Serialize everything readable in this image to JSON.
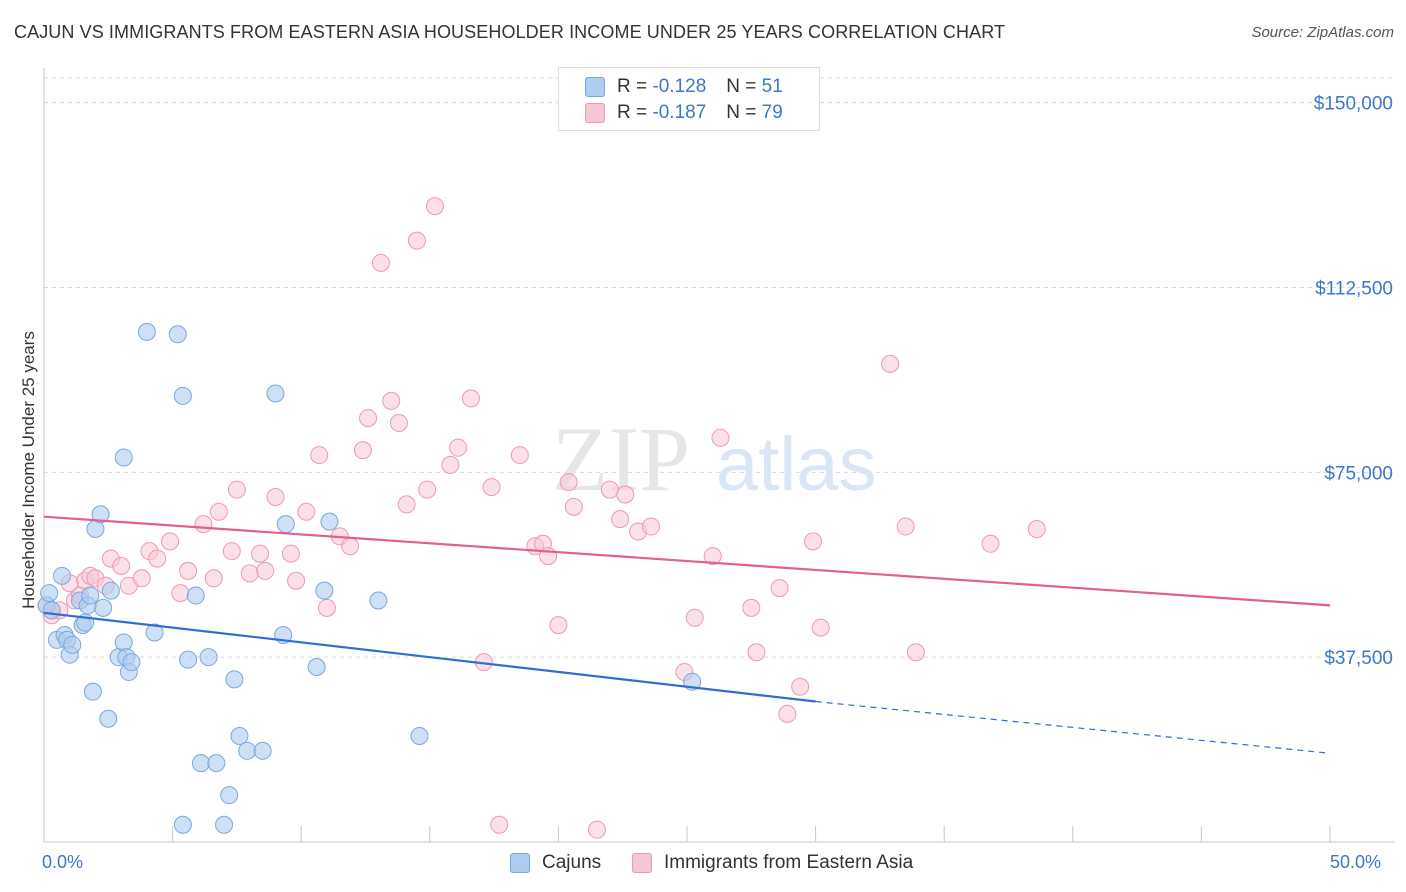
{
  "title": "CAJUN VS IMMIGRANTS FROM EASTERN ASIA HOUSEHOLDER INCOME UNDER 25 YEARS CORRELATION CHART",
  "source": "Source: ZipAtlas.com",
  "watermark": {
    "zip": "ZIP",
    "atlas": "atlas"
  },
  "legend": {
    "r_label": "R =",
    "n_label": "N =",
    "rows": [
      {
        "r": "-0.128",
        "n": "51",
        "color": "#aecbf0"
      },
      {
        "r": "-0.187",
        "n": "79",
        "color": "#f7bfd0"
      }
    ]
  },
  "colors": {
    "blue_fill": "#aecbf0",
    "blue_stroke": "#7aa7de",
    "blue_line": "#2f6fd0",
    "pink_fill": "#f7c6d4",
    "pink_stroke": "#ec9ab4",
    "pink_line": "#e0608e",
    "axis_text": "#3b78c9"
  },
  "chart_data": {
    "type": "scatter",
    "title": "CAJUN VS IMMIGRANTS FROM EASTERN ASIA HOUSEHOLDER INCOME UNDER 25 YEARS CORRELATION CHART",
    "xlabel": "",
    "ylabel": "Householder Income Under 25 years",
    "xlim": [
      0,
      50
    ],
    "ylim": [
      0,
      155000
    ],
    "x_tick_labels": [
      "0.0%",
      "50.0%"
    ],
    "y_ticks": [
      37500,
      75000,
      112500,
      150000
    ],
    "y_tick_labels": [
      "$37,500",
      "$75,000",
      "$112,500",
      "$150,000"
    ],
    "grid": true,
    "series": [
      {
        "name": "Cajuns",
        "r": -0.128,
        "n": 51,
        "trend": {
          "x0": 0,
          "y0": 46500,
          "x1": 30,
          "y1": 28500,
          "dashed_to_x": 50,
          "dashed_to_y": 18000
        },
        "points": [
          [
            0.1,
            48000
          ],
          [
            0.2,
            50500
          ],
          [
            0.3,
            47000
          ],
          [
            0.5,
            41000
          ],
          [
            0.7,
            54000
          ],
          [
            0.8,
            42000
          ],
          [
            0.9,
            41000
          ],
          [
            1.0,
            38000
          ],
          [
            1.1,
            40000
          ],
          [
            1.4,
            49000
          ],
          [
            1.5,
            44000
          ],
          [
            1.6,
            44500
          ],
          [
            1.7,
            48000
          ],
          [
            1.8,
            50000
          ],
          [
            1.9,
            30500
          ],
          [
            2.0,
            63500
          ],
          [
            2.2,
            66500
          ],
          [
            2.3,
            47500
          ],
          [
            2.5,
            25000
          ],
          [
            2.6,
            51000
          ],
          [
            2.9,
            37500
          ],
          [
            3.1,
            78000
          ],
          [
            3.1,
            40500
          ],
          [
            3.2,
            37500
          ],
          [
            3.3,
            34500
          ],
          [
            3.4,
            36500
          ],
          [
            4.0,
            103500
          ],
          [
            4.3,
            42500
          ],
          [
            5.2,
            103000
          ],
          [
            5.4,
            90500
          ],
          [
            5.6,
            37000
          ],
          [
            5.9,
            50000
          ],
          [
            6.1,
            16000
          ],
          [
            6.4,
            37500
          ],
          [
            6.7,
            16000
          ],
          [
            7.2,
            9500
          ],
          [
            7.4,
            33000
          ],
          [
            7.6,
            21500
          ],
          [
            7.9,
            18500
          ],
          [
            8.5,
            18500
          ],
          [
            9.0,
            91000
          ],
          [
            9.3,
            42000
          ],
          [
            9.4,
            64500
          ],
          [
            10.6,
            35500
          ],
          [
            10.9,
            51000
          ],
          [
            11.1,
            65000
          ],
          [
            13.0,
            49000
          ],
          [
            14.6,
            21500
          ],
          [
            25.2,
            32500
          ],
          [
            5.4,
            3500
          ],
          [
            7.0,
            3500
          ]
        ]
      },
      {
        "name": "Immigrants from Eastern Asia",
        "r": -0.187,
        "n": 79,
        "trend": {
          "x0": 0,
          "y0": 66000,
          "x1": 50,
          "y1": 48000
        },
        "points": [
          [
            0.1,
            48000
          ],
          [
            0.3,
            46000
          ],
          [
            0.6,
            47000
          ],
          [
            1.0,
            52500
          ],
          [
            1.2,
            49000
          ],
          [
            1.4,
            50000
          ],
          [
            1.6,
            53000
          ],
          [
            1.8,
            54000
          ],
          [
            2.0,
            53500
          ],
          [
            2.4,
            52000
          ],
          [
            2.6,
            57500
          ],
          [
            3.0,
            56000
          ],
          [
            3.3,
            52000
          ],
          [
            3.8,
            53500
          ],
          [
            4.1,
            59000
          ],
          [
            4.4,
            57500
          ],
          [
            4.9,
            61000
          ],
          [
            5.3,
            50500
          ],
          [
            5.6,
            55000
          ],
          [
            6.2,
            64500
          ],
          [
            6.6,
            53500
          ],
          [
            6.8,
            67000
          ],
          [
            7.3,
            59000
          ],
          [
            7.5,
            71500
          ],
          [
            8.0,
            54500
          ],
          [
            8.4,
            58500
          ],
          [
            8.6,
            55000
          ],
          [
            9.0,
            70000
          ],
          [
            9.6,
            58500
          ],
          [
            9.8,
            53000
          ],
          [
            10.2,
            67000
          ],
          [
            10.7,
            78500
          ],
          [
            11.0,
            47500
          ],
          [
            11.5,
            62000
          ],
          [
            11.9,
            60000
          ],
          [
            12.4,
            79500
          ],
          [
            12.6,
            86000
          ],
          [
            13.1,
            117500
          ],
          [
            13.5,
            89500
          ],
          [
            13.8,
            85000
          ],
          [
            14.1,
            68500
          ],
          [
            14.5,
            122000
          ],
          [
            14.9,
            71500
          ],
          [
            15.2,
            129000
          ],
          [
            15.8,
            76500
          ],
          [
            16.1,
            80000
          ],
          [
            16.6,
            90000
          ],
          [
            17.1,
            36500
          ],
          [
            17.4,
            72000
          ],
          [
            17.7,
            3500
          ],
          [
            18.5,
            78500
          ],
          [
            19.1,
            60000
          ],
          [
            19.4,
            60500
          ],
          [
            19.6,
            58000
          ],
          [
            20.0,
            44000
          ],
          [
            20.4,
            73000
          ],
          [
            20.6,
            68000
          ],
          [
            21.5,
            2500
          ],
          [
            22.0,
            71500
          ],
          [
            22.4,
            65500
          ],
          [
            22.6,
            70500
          ],
          [
            23.1,
            63000
          ],
          [
            23.6,
            64000
          ],
          [
            24.9,
            34500
          ],
          [
            25.3,
            45500
          ],
          [
            26.0,
            58000
          ],
          [
            26.3,
            82000
          ],
          [
            27.5,
            47500
          ],
          [
            27.7,
            38500
          ],
          [
            28.6,
            51500
          ],
          [
            28.9,
            26000
          ],
          [
            29.4,
            31500
          ],
          [
            29.9,
            61000
          ],
          [
            30.2,
            43500
          ],
          [
            33.5,
            64000
          ],
          [
            32.9,
            97000
          ],
          [
            33.9,
            38500
          ],
          [
            36.8,
            60500
          ],
          [
            38.6,
            63500
          ]
        ]
      }
    ]
  },
  "bottom_legend": [
    "Cajuns",
    "Immigrants from Eastern Asia"
  ]
}
